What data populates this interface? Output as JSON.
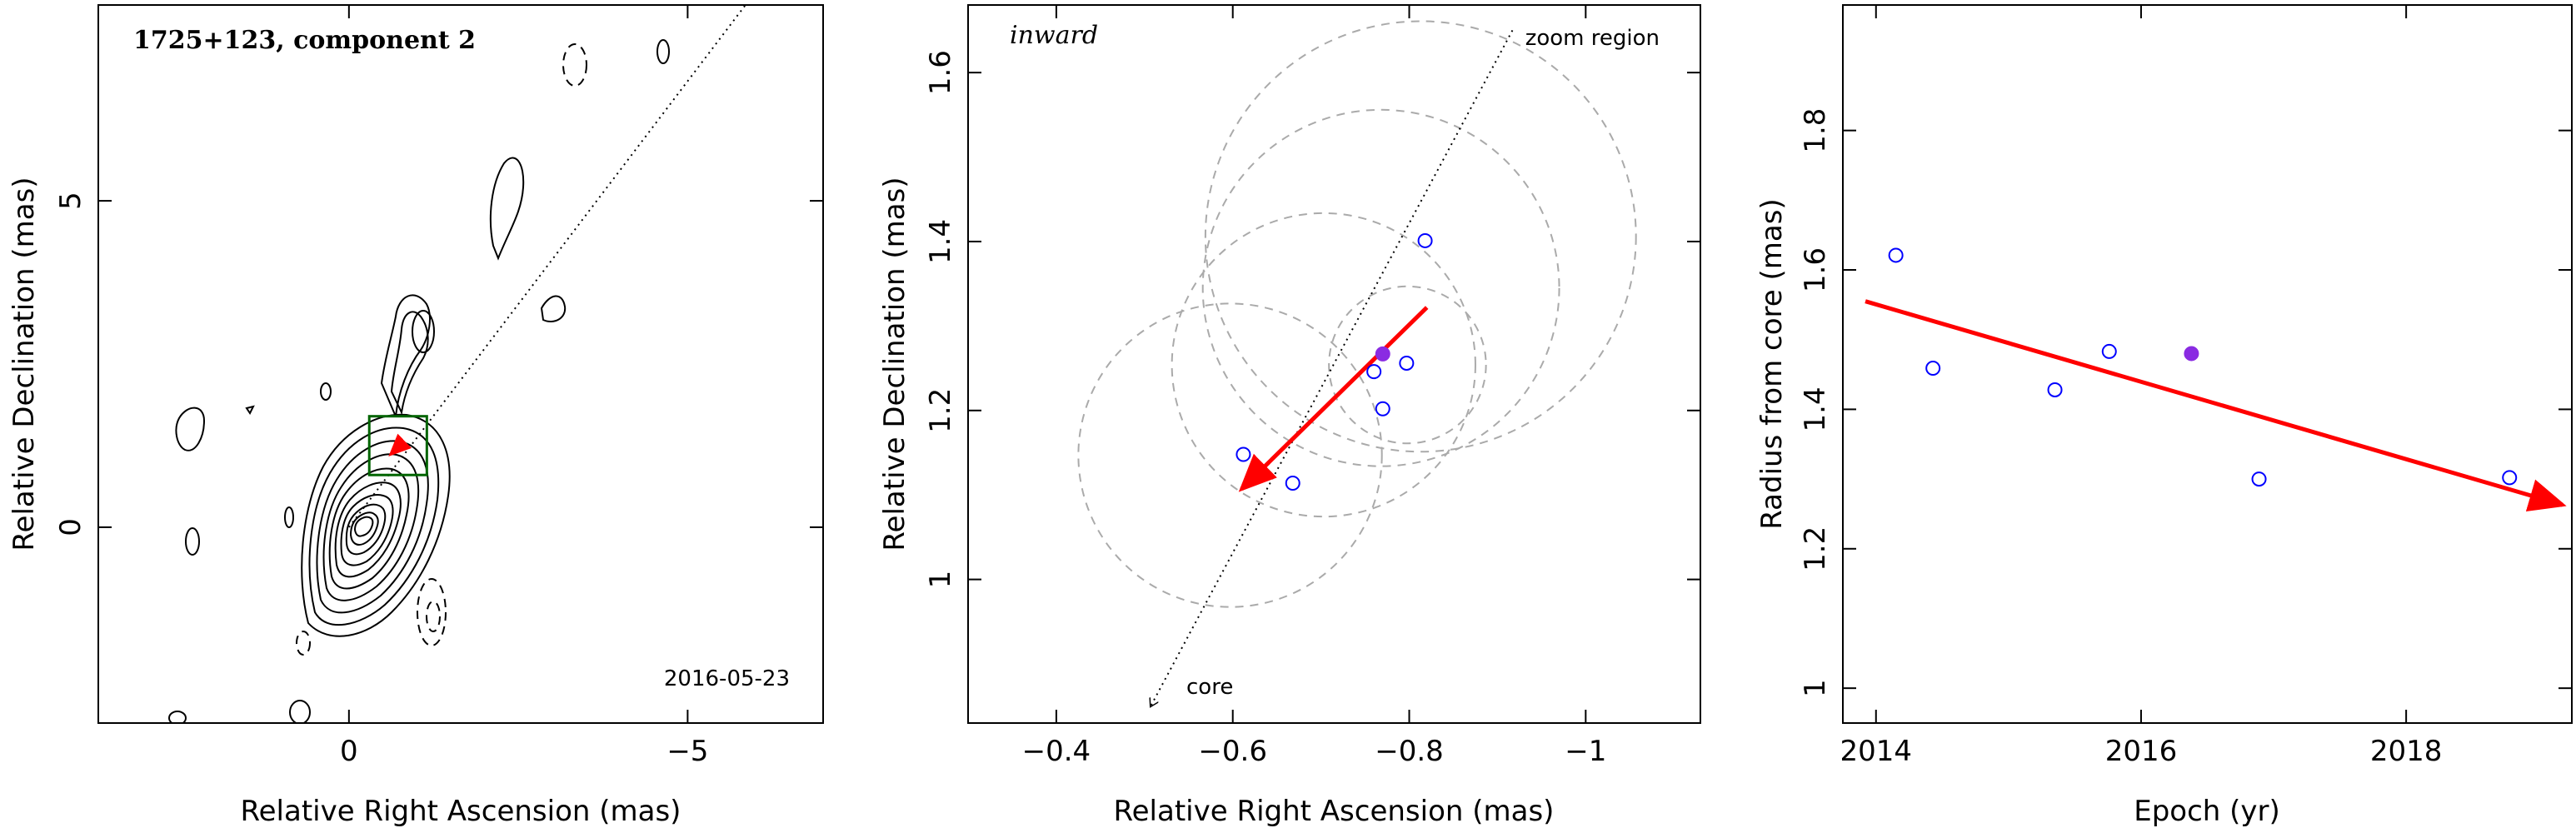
{
  "chart_data": [
    {
      "type": "contour",
      "title": "1725+123, component 2",
      "date": "2016-05-23",
      "xlabel": "Relative Right Ascension (mas)",
      "ylabel": "Relative Declination (mas)",
      "xlim": [
        3.7,
        -7.0
      ],
      "ylim": [
        -3.0,
        8.0
      ],
      "xticks": [
        0,
        -5
      ],
      "xtick_labels": [
        "0",
        "−5"
      ],
      "yticks": [
        0,
        5
      ],
      "ytick_labels": [
        "0",
        "5"
      ],
      "jet_axis": {
        "x": [
          0,
          -6
        ],
        "y": [
          0,
          8.2
        ]
      },
      "zoom_box": {
        "x": [
          -0.3,
          -1.15
        ],
        "y": [
          0.8,
          1.7
        ]
      },
      "motion_arrow": {
        "from": [
          -0.82,
          1.32
        ],
        "to": [
          -0.61,
          1.11
        ]
      },
      "colors": {
        "contour": "#000000",
        "box": "#006400",
        "arrow": "#ff0000"
      }
    },
    {
      "type": "scatter",
      "annotation": "inward",
      "region_label": "zoom region",
      "core_label": "core",
      "xlabel": "Relative Right Ascension (mas)",
      "ylabel": "Relative Declination (mas)",
      "xlim": [
        -0.3,
        -1.13
      ],
      "ylim": [
        0.83,
        1.68
      ],
      "xticks": [
        -0.4,
        -0.6,
        -0.8,
        -1.0
      ],
      "xtick_labels": [
        "−0.4",
        "−0.6",
        "−0.8",
        "−1"
      ],
      "yticks": [
        1.0,
        1.2,
        1.4,
        1.6
      ],
      "ytick_labels": [
        "1",
        "1.2",
        "1.4",
        "1.6"
      ],
      "points": [
        {
          "x": -0.612,
          "y": 1.148,
          "filled": false
        },
        {
          "x": -0.668,
          "y": 1.114,
          "filled": false
        },
        {
          "x": -0.76,
          "y": 1.246,
          "filled": false
        },
        {
          "x": -0.77,
          "y": 1.202,
          "filled": false
        },
        {
          "x": -0.797,
          "y": 1.256,
          "filled": false
        },
        {
          "x": -0.818,
          "y": 1.401,
          "filled": false
        },
        {
          "x": -0.77,
          "y": 1.267,
          "filled": true
        }
      ],
      "circles": [
        {
          "cx": -0.597,
          "cy": 1.147,
          "r": 0.172
        },
        {
          "cx": -0.703,
          "cy": 1.254,
          "r": 0.172
        },
        {
          "cx": -0.798,
          "cy": 1.254,
          "r": 0.089
        },
        {
          "cx": -0.768,
          "cy": 1.345,
          "r": 0.202
        },
        {
          "cx": -0.813,
          "cy": 1.406,
          "r": 0.244
        }
      ],
      "jet_axis": {
        "from": [
          -0.917,
          1.65
        ],
        "to": [
          -0.507,
          0.85
        ]
      },
      "motion_arrow": {
        "from": [
          -0.82,
          1.322
        ],
        "to": [
          -0.61,
          1.107
        ]
      },
      "colors": {
        "open_marker": "#0000ff",
        "filled_marker": "#8a2be2",
        "arrow": "#ff0000",
        "circles": "#aaaaaa"
      }
    },
    {
      "type": "scatter",
      "xlabel": "Epoch (yr)",
      "ylabel": "Radius from core (mas)",
      "xlim": [
        2013.75,
        2019.25
      ],
      "ylim": [
        0.95,
        1.98
      ],
      "xticks": [
        2014,
        2016,
        2018
      ],
      "xtick_labels": [
        "2014",
        "2016",
        "2018"
      ],
      "yticks": [
        1.0,
        1.2,
        1.4,
        1.6,
        1.8
      ],
      "ytick_labels": [
        "1",
        "1.2",
        "1.4",
        "1.6",
        "1.8"
      ],
      "points": [
        {
          "x": 2014.15,
          "y": 1.621,
          "filled": false
        },
        {
          "x": 2014.43,
          "y": 1.459,
          "filled": false
        },
        {
          "x": 2015.35,
          "y": 1.428,
          "filled": false
        },
        {
          "x": 2015.76,
          "y": 1.483,
          "filled": false
        },
        {
          "x": 2016.38,
          "y": 1.48,
          "filled": true
        },
        {
          "x": 2016.89,
          "y": 1.3,
          "filled": false
        },
        {
          "x": 2018.78,
          "y": 1.302,
          "filled": false
        }
      ],
      "trend_arrow": {
        "from": [
          2013.92,
          1.555
        ],
        "to": [
          2019.18,
          1.263
        ]
      },
      "colors": {
        "open_marker": "#0000ff",
        "filled_marker": "#8a2be2",
        "arrow": "#ff0000"
      }
    }
  ]
}
